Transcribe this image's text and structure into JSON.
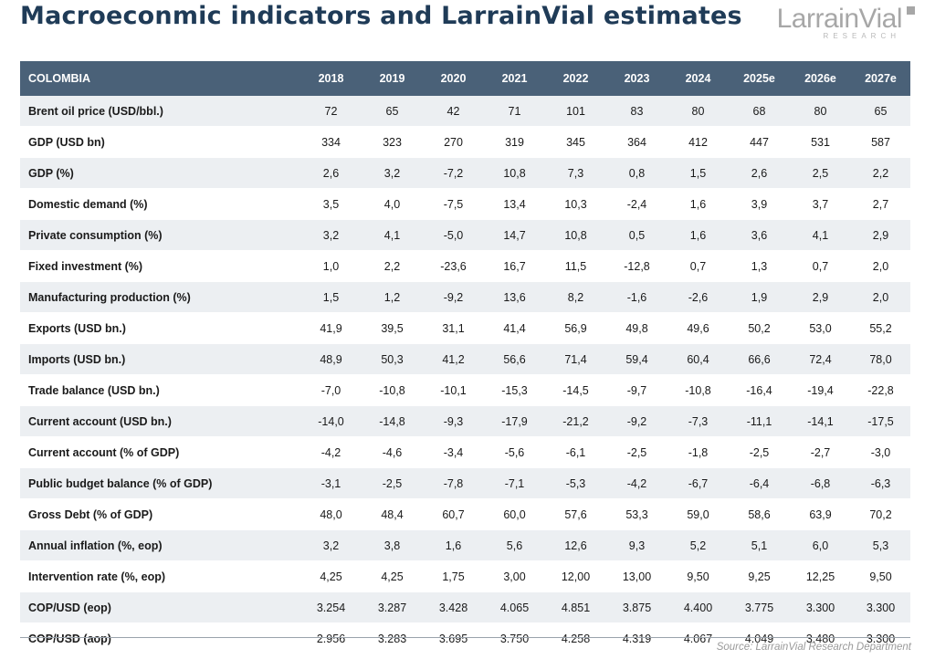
{
  "page": {
    "title": "Macroeconmic indicators and LarrainVial estimates",
    "source": "Source: LarrainVial Research Department"
  },
  "logo": {
    "wordmark": "LarrainVial",
    "subtitle": "RESEARCH"
  },
  "colors": {
    "header_bg": "#4a6178",
    "title": "#1f3b57",
    "stripe": "#eceff2"
  },
  "table": {
    "country": "COLOMBIA",
    "years": [
      "2018",
      "2019",
      "2020",
      "2021",
      "2022",
      "2023",
      "2024",
      "2025e",
      "2026e",
      "2027e"
    ],
    "rows": [
      {
        "label": "Brent oil price (USD/bbl.)",
        "values": [
          "72",
          "65",
          "42",
          "71",
          "101",
          "83",
          "80",
          "68",
          "80",
          "65"
        ]
      },
      {
        "label": "GDP (USD bn)",
        "values": [
          "334",
          "323",
          "270",
          "319",
          "345",
          "364",
          "412",
          "447",
          "531",
          "587"
        ]
      },
      {
        "label": "GDP (%)",
        "values": [
          "2,6",
          "3,2",
          "-7,2",
          "10,8",
          "7,3",
          "0,8",
          "1,5",
          "2,6",
          "2,5",
          "2,2"
        ]
      },
      {
        "label": "Domestic demand (%)",
        "values": [
          "3,5",
          "4,0",
          "-7,5",
          "13,4",
          "10,3",
          "-2,4",
          "1,6",
          "3,9",
          "3,7",
          "2,7"
        ]
      },
      {
        "label": "Private consumption (%)",
        "values": [
          "3,2",
          "4,1",
          "-5,0",
          "14,7",
          "10,8",
          "0,5",
          "1,6",
          "3,6",
          "4,1",
          "2,9"
        ]
      },
      {
        "label": "Fixed investment (%)",
        "values": [
          "1,0",
          "2,2",
          "-23,6",
          "16,7",
          "11,5",
          "-12,8",
          "0,7",
          "1,3",
          "0,7",
          "2,0"
        ]
      },
      {
        "label": "Manufacturing production (%)",
        "values": [
          "1,5",
          "1,2",
          "-9,2",
          "13,6",
          "8,2",
          "-1,6",
          "-2,6",
          "1,9",
          "2,9",
          "2,0"
        ]
      },
      {
        "label": "Exports (USD bn.)",
        "values": [
          "41,9",
          "39,5",
          "31,1",
          "41,4",
          "56,9",
          "49,8",
          "49,6",
          "50,2",
          "53,0",
          "55,2"
        ]
      },
      {
        "label": "Imports (USD bn.)",
        "values": [
          "48,9",
          "50,3",
          "41,2",
          "56,6",
          "71,4",
          "59,4",
          "60,4",
          "66,6",
          "72,4",
          "78,0"
        ]
      },
      {
        "label": "Trade balance (USD bn.)",
        "values": [
          "-7,0",
          "-10,8",
          "-10,1",
          "-15,3",
          "-14,5",
          "-9,7",
          "-10,8",
          "-16,4",
          "-19,4",
          "-22,8"
        ]
      },
      {
        "label": "Current account (USD bn.)",
        "values": [
          "-14,0",
          "-14,8",
          "-9,3",
          "-17,9",
          "-21,2",
          "-9,2",
          "-7,3",
          "-11,1",
          "-14,1",
          "-17,5"
        ]
      },
      {
        "label": "Current account (% of GDP)",
        "values": [
          "-4,2",
          "-4,6",
          "-3,4",
          "-5,6",
          "-6,1",
          "-2,5",
          "-1,8",
          "-2,5",
          "-2,7",
          "-3,0"
        ]
      },
      {
        "label": "Public budget balance (% of GDP)",
        "values": [
          "-3,1",
          "-2,5",
          "-7,8",
          "-7,1",
          "-5,3",
          "-4,2",
          "-6,7",
          "-6,4",
          "-6,8",
          "-6,3"
        ]
      },
      {
        "label": "Gross Debt (% of GDP)",
        "values": [
          "48,0",
          "48,4",
          "60,7",
          "60,0",
          "57,6",
          "53,3",
          "59,0",
          "58,6",
          "63,9",
          "70,2"
        ]
      },
      {
        "label": "Annual inflation (%, eop)",
        "values": [
          "3,2",
          "3,8",
          "1,6",
          "5,6",
          "12,6",
          "9,3",
          "5,2",
          "5,1",
          "6,0",
          "5,3"
        ]
      },
      {
        "label": "Intervention rate (%, eop)",
        "values": [
          "4,25",
          "4,25",
          "1,75",
          "3,00",
          "12,00",
          "13,00",
          "9,50",
          "9,25",
          "12,25",
          "9,50"
        ]
      },
      {
        "label": "COP/USD (eop)",
        "values": [
          "3.254",
          "3.287",
          "3.428",
          "4.065",
          "4.851",
          "3.875",
          "4.400",
          "3.775",
          "3.300",
          "3.300"
        ]
      },
      {
        "label": "COP/USD (aop)",
        "values": [
          "2.956",
          "3.283",
          "3.695",
          "3.750",
          "4.258",
          "4.319",
          "4.067",
          "4.049",
          "3.480",
          "3.300"
        ]
      }
    ]
  }
}
